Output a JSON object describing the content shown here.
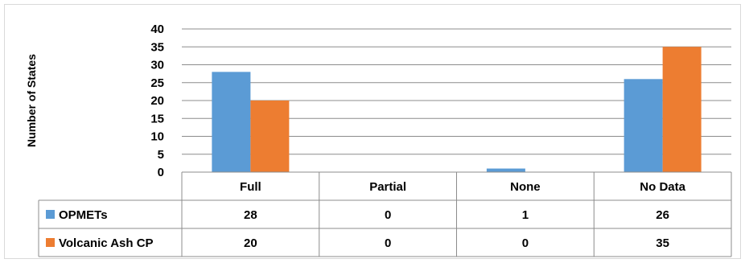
{
  "chart_data": {
    "type": "bar",
    "title": "",
    "ylabel": "Number of States",
    "xlabel": "",
    "categories": [
      "Full",
      "Partial",
      "None",
      "No Data"
    ],
    "series": [
      {
        "name": "OPMETs",
        "values": [
          28,
          0,
          1,
          26
        ],
        "color": "#5b9bd5"
      },
      {
        "name": "Volcanic Ash CP",
        "values": [
          20,
          0,
          0,
          35
        ],
        "color": "#ed7d31"
      }
    ],
    "ylim": [
      0,
      40
    ],
    "yticks": [
      0,
      5,
      10,
      15,
      20,
      25,
      30,
      35,
      40
    ],
    "grid": true,
    "legend": "data-table"
  }
}
